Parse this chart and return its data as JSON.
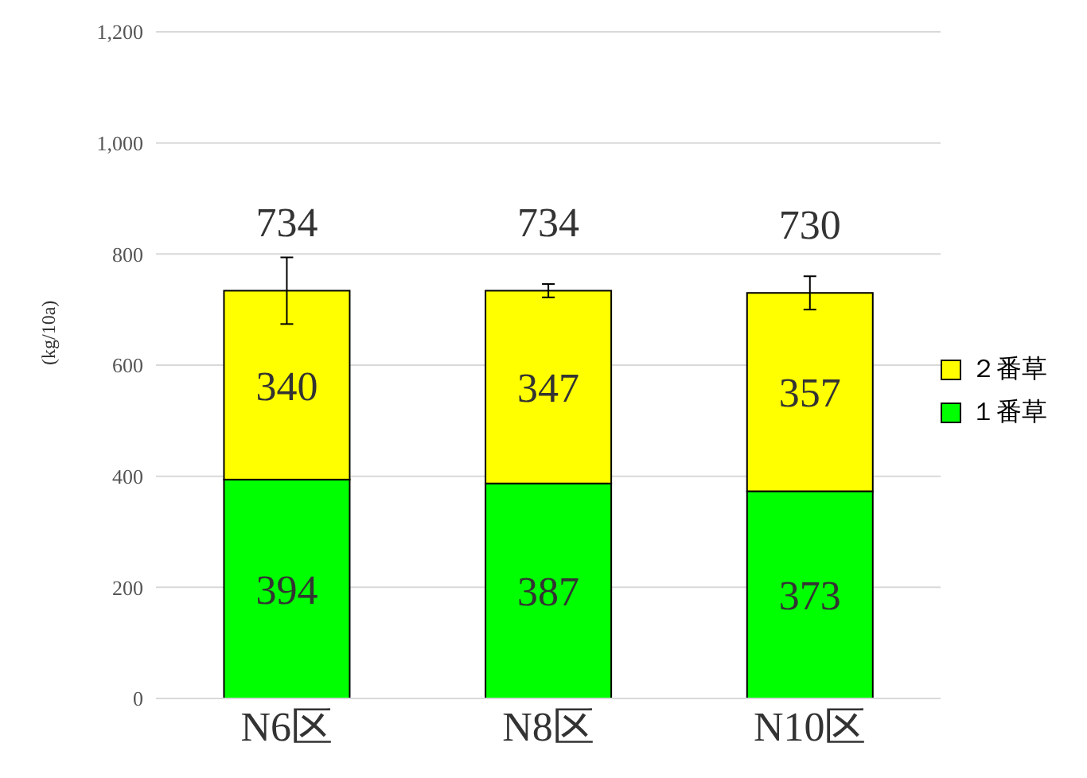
{
  "chart_data": {
    "type": "bar",
    "stacked": true,
    "categories": [
      "N6区",
      "N8区",
      "N10区"
    ],
    "ylabel": "(kg/10a)",
    "series": [
      {
        "name": "１番草",
        "color": "#00ff00",
        "values": [
          394,
          387,
          373
        ]
      },
      {
        "name": "２番草",
        "color": "#ffff00",
        "values": [
          340,
          347,
          357
        ],
        "errors": [
          60,
          12,
          30
        ]
      }
    ],
    "totals": [
      "734",
      "734",
      "730"
    ],
    "data_labels": true,
    "ylim": [
      0,
      1200
    ],
    "yticks": [
      0,
      200,
      400,
      600,
      800,
      {
        "value": 1000,
        "label": "1,000"
      },
      {
        "value": 1200,
        "label": "1,200"
      }
    ],
    "grid": "y",
    "legend": "right"
  }
}
